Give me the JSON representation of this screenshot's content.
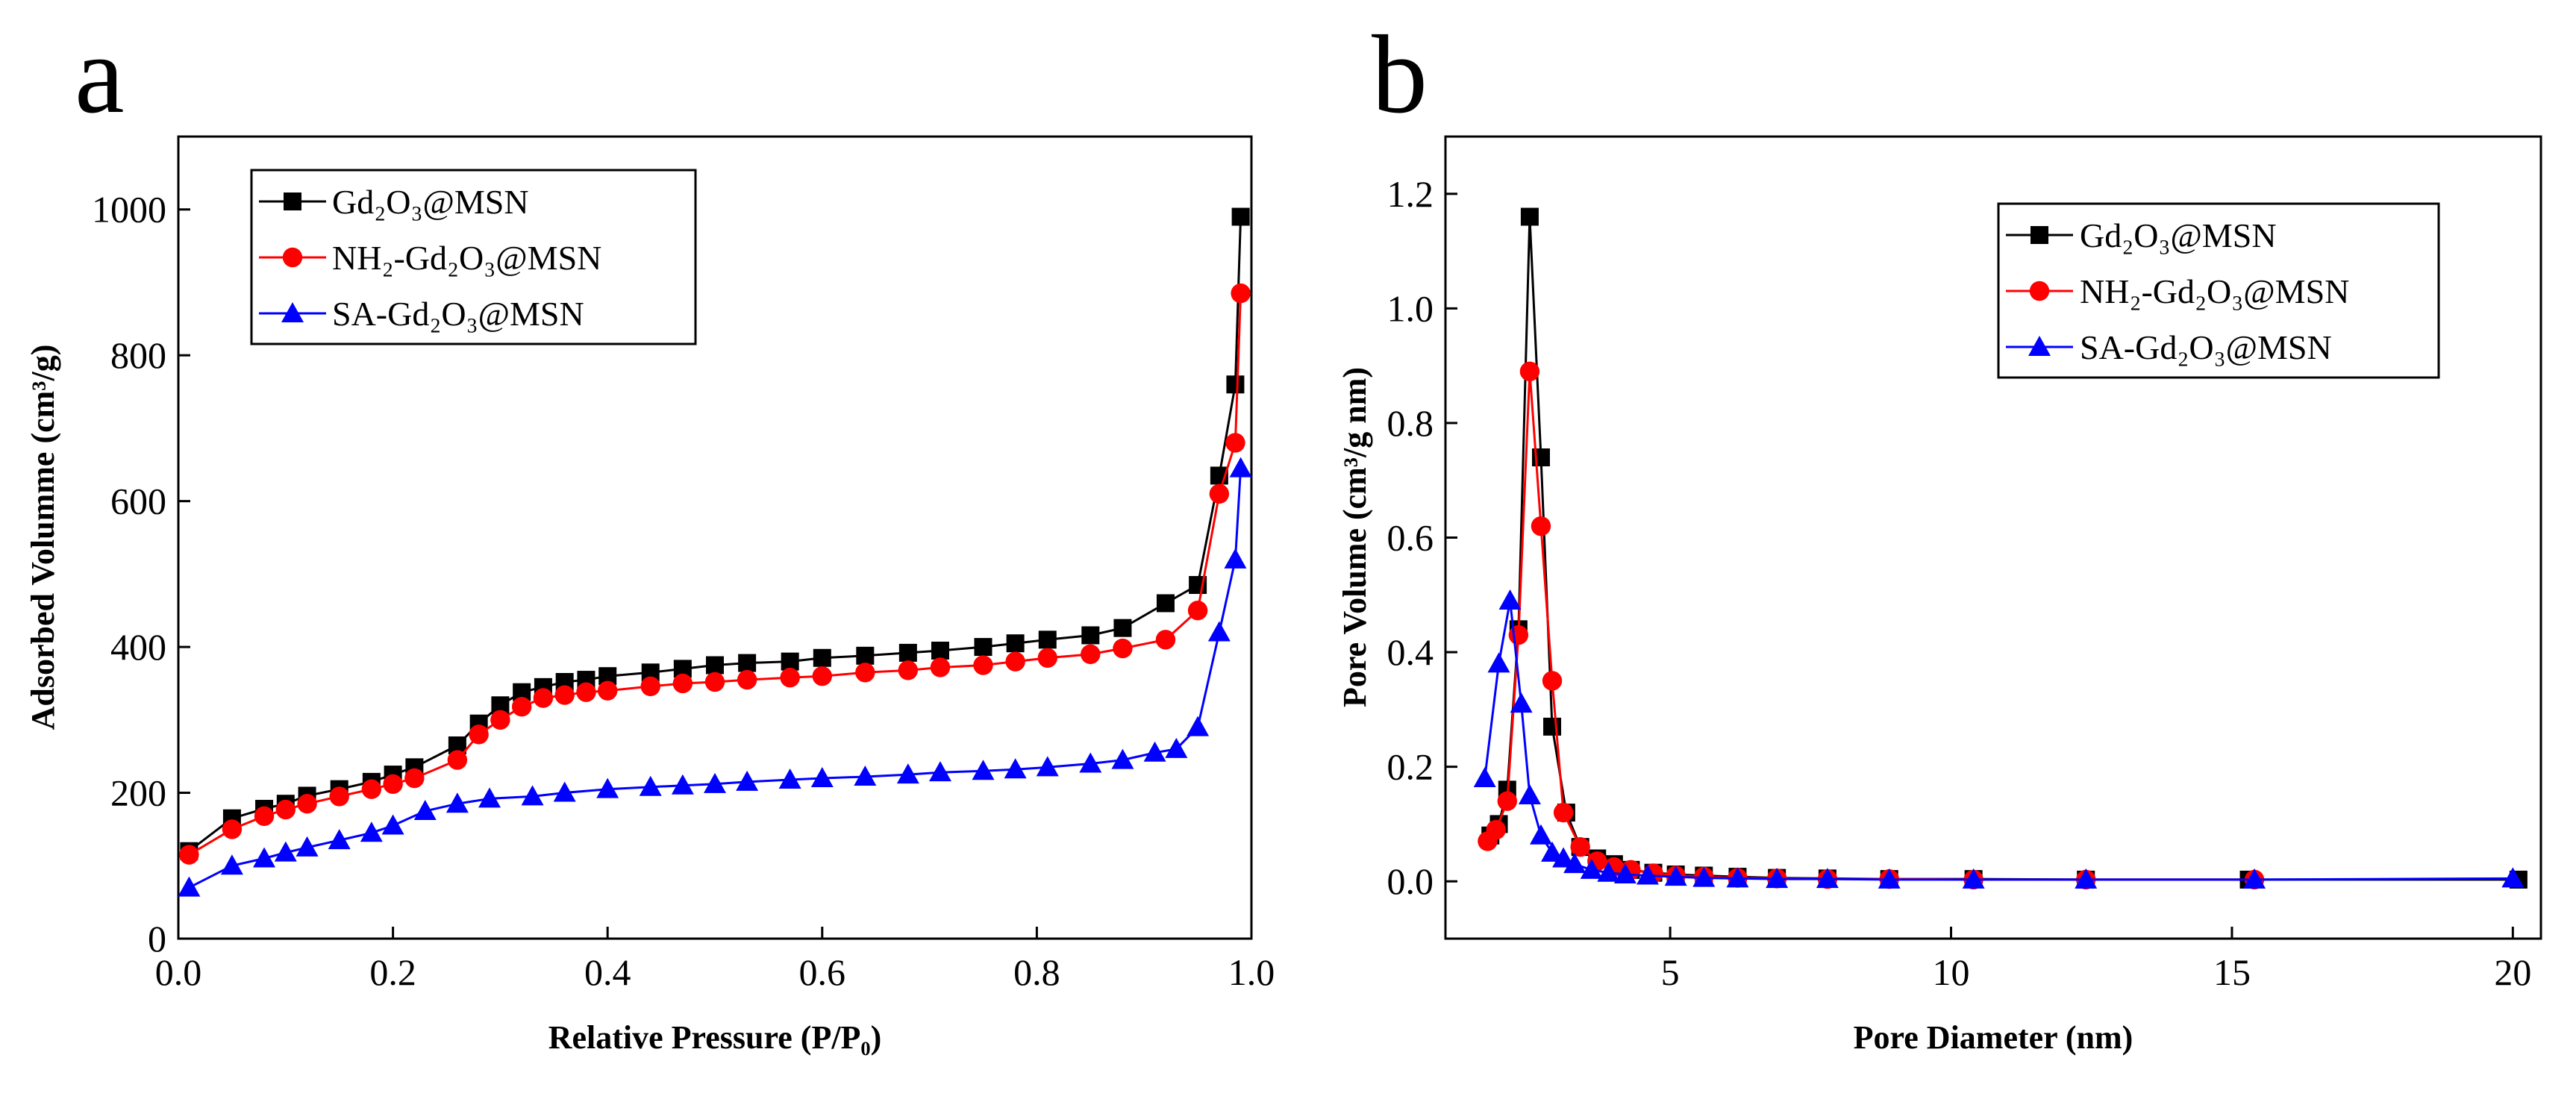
{
  "chart_data": [
    {
      "type": "line",
      "panel_label": "a",
      "xlabel": "Relative Pressure (P/P₀)",
      "ylabel": "Adsorbed Volumme (cm³/g)",
      "xlim": [
        0.0,
        1.0
      ],
      "ylim": [
        0,
        1100
      ],
      "xticks": [
        "0.0",
        "0.2",
        "0.4",
        "0.6",
        "0.8",
        "1.0"
      ],
      "yticks": [
        "0",
        "200",
        "400",
        "600",
        "800",
        "1000"
      ],
      "legend_position": "top-left",
      "series": [
        {
          "name": "Gd₂O₃@MSN",
          "color": "#000000",
          "marker": "square",
          "x": [
            0.01,
            0.05,
            0.08,
            0.1,
            0.12,
            0.15,
            0.18,
            0.2,
            0.22,
            0.26,
            0.28,
            0.3,
            0.32,
            0.34,
            0.36,
            0.38,
            0.4,
            0.44,
            0.47,
            0.5,
            0.53,
            0.57,
            0.6,
            0.64,
            0.68,
            0.71,
            0.75,
            0.78,
            0.81,
            0.85,
            0.88,
            0.92,
            0.95,
            0.97,
            0.985,
            0.99
          ],
          "y": [
            120,
            165,
            178,
            185,
            196,
            205,
            215,
            225,
            235,
            265,
            295,
            320,
            338,
            345,
            352,
            355,
            360,
            365,
            370,
            375,
            378,
            380,
            385,
            388,
            392,
            395,
            400,
            405,
            410,
            416,
            426,
            460,
            485,
            635,
            760,
            990
          ]
        },
        {
          "name": "NH₂-Gd₂O₃@MSN",
          "color": "#ff0000",
          "marker": "circle",
          "x": [
            0.01,
            0.05,
            0.08,
            0.1,
            0.12,
            0.15,
            0.18,
            0.2,
            0.22,
            0.26,
            0.28,
            0.3,
            0.32,
            0.34,
            0.36,
            0.38,
            0.4,
            0.44,
            0.47,
            0.5,
            0.53,
            0.57,
            0.6,
            0.64,
            0.68,
            0.71,
            0.75,
            0.78,
            0.81,
            0.85,
            0.88,
            0.92,
            0.95,
            0.97,
            0.985,
            0.99
          ],
          "y": [
            115,
            150,
            168,
            177,
            185,
            195,
            205,
            212,
            220,
            245,
            280,
            300,
            318,
            330,
            334,
            338,
            340,
            346,
            350,
            352,
            355,
            358,
            360,
            365,
            368,
            372,
            375,
            380,
            385,
            390,
            398,
            410,
            450,
            610,
            680,
            885
          ]
        },
        {
          "name": "SA-Gd₂O₃@MSN",
          "color": "#0000ff",
          "marker": "triangle",
          "x": [
            0.01,
            0.05,
            0.08,
            0.1,
            0.12,
            0.15,
            0.18,
            0.2,
            0.23,
            0.26,
            0.29,
            0.33,
            0.36,
            0.4,
            0.44,
            0.47,
            0.5,
            0.53,
            0.57,
            0.6,
            0.64,
            0.68,
            0.71,
            0.75,
            0.78,
            0.81,
            0.85,
            0.88,
            0.91,
            0.93,
            0.95,
            0.97,
            0.985,
            0.99
          ],
          "y": [
            70,
            100,
            110,
            118,
            125,
            135,
            145,
            155,
            175,
            185,
            192,
            195,
            200,
            205,
            208,
            210,
            212,
            215,
            218,
            220,
            222,
            225,
            228,
            230,
            232,
            235,
            240,
            245,
            255,
            260,
            290,
            420,
            520,
            645
          ]
        }
      ]
    },
    {
      "type": "line",
      "panel_label": "b",
      "xlabel": "Pore Diameter (nm)",
      "ylabel": "Pore Volume (cm³/g nm)",
      "xlim": [
        1.0,
        20.5
      ],
      "ylim": [
        -0.1,
        1.3
      ],
      "xticks": [
        "5",
        "10",
        "15",
        "20"
      ],
      "yticks": [
        "0.0",
        "0.2",
        "0.4",
        "0.6",
        "0.8",
        "1.0",
        "1.2"
      ],
      "legend_position": "top-right",
      "series": [
        {
          "name": "Gd₂O₃@MSN",
          "color": "#000000",
          "marker": "square",
          "x": [
            1.8,
            1.95,
            2.1,
            2.3,
            2.5,
            2.7,
            2.9,
            3.15,
            3.4,
            3.7,
            4.0,
            4.3,
            4.7,
            5.1,
            5.6,
            6.2,
            6.9,
            7.8,
            8.9,
            10.4,
            12.4,
            15.3,
            20.1
          ],
          "y": [
            0.08,
            0.1,
            0.16,
            0.44,
            1.16,
            0.74,
            0.27,
            0.12,
            0.06,
            0.04,
            0.03,
            0.02,
            0.015,
            0.012,
            0.01,
            0.008,
            0.006,
            0.005,
            0.004,
            0.004,
            0.003,
            0.003,
            0.003
          ]
        },
        {
          "name": "NH₂-Gd₂O₃@MSN",
          "color": "#ff0000",
          "marker": "circle",
          "x": [
            1.75,
            1.9,
            2.1,
            2.3,
            2.5,
            2.7,
            2.9,
            3.1,
            3.4,
            3.7,
            4.0,
            4.3,
            4.7,
            5.1,
            5.6,
            6.2,
            6.9,
            7.8,
            8.9,
            10.4,
            12.4,
            15.4
          ],
          "y": [
            0.07,
            0.09,
            0.14,
            0.43,
            0.89,
            0.62,
            0.35,
            0.12,
            0.06,
            0.035,
            0.025,
            0.02,
            0.014,
            0.01,
            0.008,
            0.006,
            0.005,
            0.004,
            0.004,
            0.003,
            0.003,
            0.003
          ]
        },
        {
          "name": "SA-Gd₂O₃@MSN",
          "color": "#0000ff",
          "marker": "triangle",
          "x": [
            1.7,
            1.95,
            2.15,
            2.35,
            2.5,
            2.7,
            2.9,
            3.1,
            3.3,
            3.6,
            3.9,
            4.2,
            4.6,
            5.1,
            5.6,
            6.2,
            6.9,
            7.8,
            8.9,
            10.4,
            12.4,
            15.4,
            20.0
          ],
          "y": [
            0.18,
            0.38,
            0.49,
            0.31,
            0.15,
            0.08,
            0.05,
            0.04,
            0.03,
            0.02,
            0.015,
            0.012,
            0.01,
            0.008,
            0.006,
            0.005,
            0.004,
            0.004,
            0.003,
            0.003,
            0.003,
            0.003,
            0.005
          ]
        }
      ]
    }
  ]
}
